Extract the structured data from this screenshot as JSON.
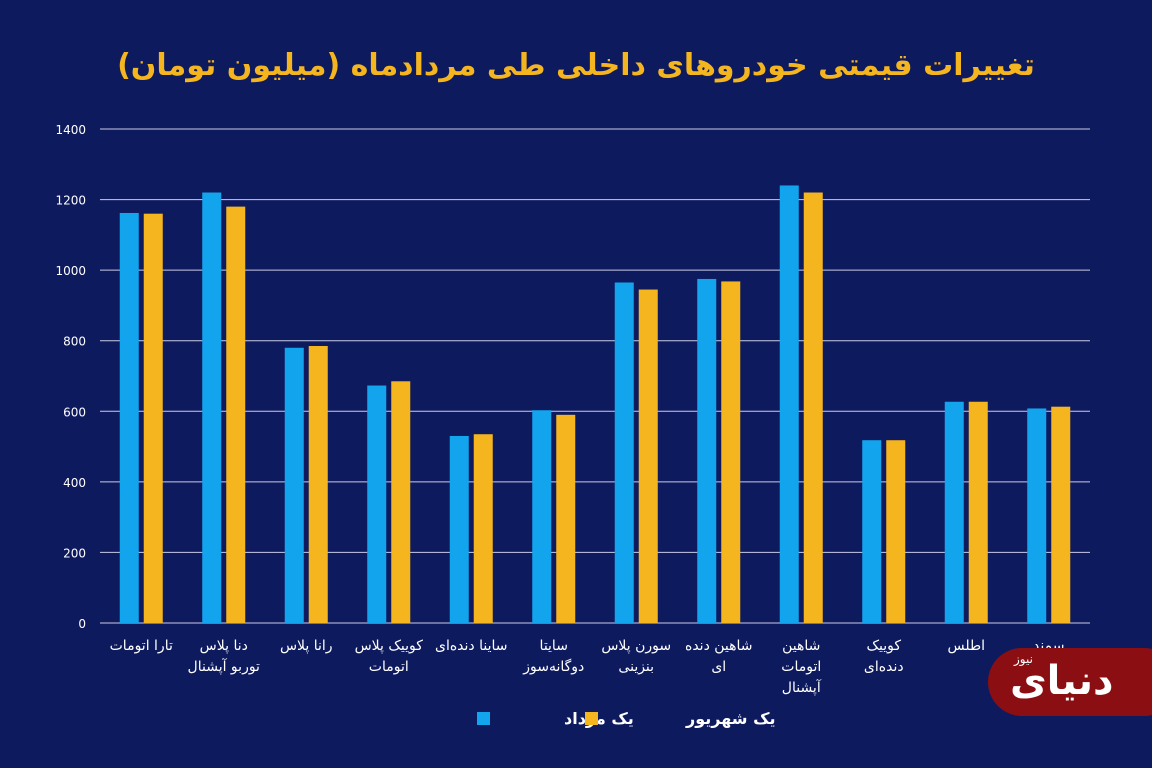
{
  "title": "تغییرات قیمتی خودروهای داخلی طی مردادماه (میلیون تومان)",
  "colors": {
    "background": "#0e1a5e",
    "series1": "#13a4ee",
    "series2": "#f5b51f",
    "title": "#f5b51f",
    "grid": "#c9cbe6",
    "text": "#ffffff"
  },
  "logo": {
    "main": "دنیای",
    "sub": "نیوز"
  },
  "chart_data": {
    "type": "bar",
    "title": "تغییرات قیمتی خودروهای داخلی طی مردادماه (میلیون تومان)",
    "xlabel": "",
    "ylabel": "",
    "ylim": [
      0,
      1400
    ],
    "yticks": [
      0,
      200,
      400,
      600,
      800,
      1000,
      1200,
      1400
    ],
    "ytick_labels": [
      "0",
      "200",
      "400",
      "600",
      "800",
      "1000",
      "1200",
      "1400"
    ],
    "grid": true,
    "legend_position": "bottom",
    "categories": [
      "تارا اتومات",
      "دنا پلاس توربو آپشنال",
      "رانا پلاس",
      "کوییک پلاس اتومات",
      "ساینا دنده‌ای",
      "سایتا دوگانه‌سوز",
      "سورن پلاس بنزینی",
      "شاهین دنده ای",
      "شاهین اتومات آپشنال",
      "کوییک دنده‌ای",
      "اطلس",
      "سمند"
    ],
    "category_lines": [
      [
        "تارا اتومات"
      ],
      [
        "دنا پلاس",
        "توربو آپشنال"
      ],
      [
        "رانا پلاس"
      ],
      [
        "کوییک پلاس",
        "اتومات"
      ],
      [
        "ساینا دنده‌ای"
      ],
      [
        "سایتا",
        "دوگانه‌سوز"
      ],
      [
        "سورن پلاس",
        "بنزینی"
      ],
      [
        "شاهین دنده",
        "ای"
      ],
      [
        "شاهین",
        "اتومات",
        "آپشنال"
      ],
      [
        "کوییک",
        "دنده‌ای"
      ],
      [
        "اطلس"
      ],
      [
        "سمند"
      ]
    ],
    "series": [
      {
        "name": "یک مرداد",
        "values": [
          1162,
          1220,
          780,
          673,
          530,
          603,
          965,
          975,
          1240,
          518,
          627,
          608
        ]
      },
      {
        "name": "یک شهریور",
        "values": [
          1160,
          1180,
          785,
          685,
          535,
          590,
          945,
          968,
          1220,
          518,
          627,
          613
        ]
      }
    ]
  }
}
